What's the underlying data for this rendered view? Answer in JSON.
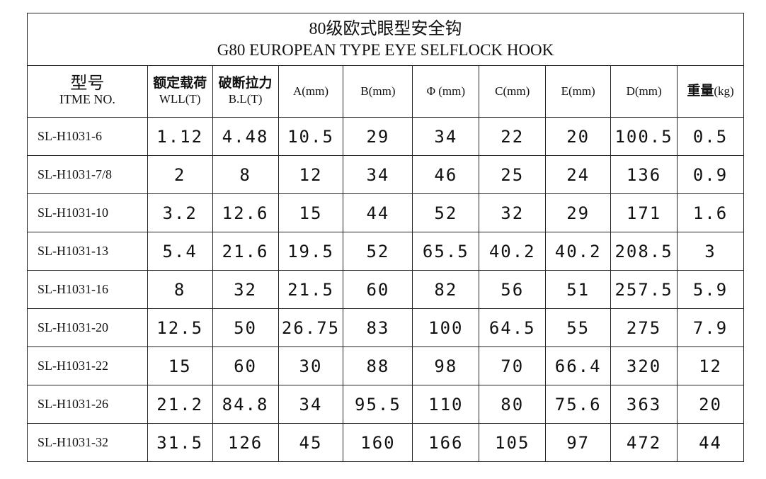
{
  "title": {
    "cn": "80级欧式眼型安全钩",
    "en": "G80  EUROPEAN TYPE EYE SELFLOCK HOOK"
  },
  "headers": [
    {
      "cn": "型号",
      "en": "ITME NO."
    },
    {
      "cn": "额定载荷",
      "en": "WLL(T)"
    },
    {
      "cn": "破断拉力",
      "en": "B.L(T)"
    },
    {
      "cn": "",
      "en": "A(mm)"
    },
    {
      "cn": "",
      "en": "B(mm)"
    },
    {
      "cn": "",
      "en": "Φ (mm)"
    },
    {
      "cn": "",
      "en": "C(mm)"
    },
    {
      "cn": "",
      "en": "E(mm)"
    },
    {
      "cn": "",
      "en": "D(mm)"
    },
    {
      "cn": "重量",
      "en": "(kg)"
    }
  ],
  "rows": [
    [
      "SL-H1031-6",
      "1.12",
      "4.48",
      "10.5",
      "29",
      "34",
      "22",
      "20",
      "100.5",
      "0.5"
    ],
    [
      "SL-H1031-7/8",
      "2",
      "8",
      "12",
      "34",
      "46",
      "25",
      "24",
      "136",
      "0.9"
    ],
    [
      "SL-H1031-10",
      "3.2",
      "12.6",
      "15",
      "44",
      "52",
      "32",
      "29",
      "171",
      "1.6"
    ],
    [
      "SL-H1031-13",
      "5.4",
      "21.6",
      "19.5",
      "52",
      "65.5",
      "40.2",
      "40.2",
      "208.5",
      "3"
    ],
    [
      "SL-H1031-16",
      "8",
      "32",
      "21.5",
      "60",
      "82",
      "56",
      "51",
      "257.5",
      "5.9"
    ],
    [
      "SL-H1031-20",
      "12.5",
      "50",
      "26.75",
      "83",
      "100",
      "64.5",
      "55",
      "275",
      "7.9"
    ],
    [
      "SL-H1031-22",
      "15",
      "60",
      "30",
      "88",
      "98",
      "70",
      "66.4",
      "320",
      "12"
    ],
    [
      "SL-H1031-26",
      "21.2",
      "84.8",
      "34",
      "95.5",
      "110",
      "80",
      "75.6",
      "363",
      "20"
    ],
    [
      "SL-H1031-32",
      "31.5",
      "126",
      "45",
      "160",
      "166",
      "105",
      "97",
      "472",
      "44"
    ]
  ]
}
